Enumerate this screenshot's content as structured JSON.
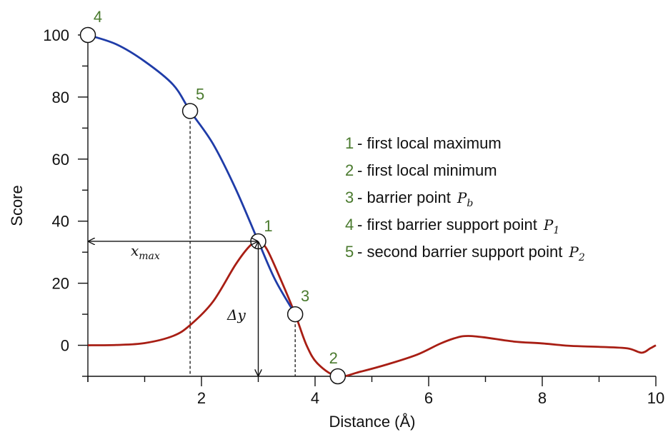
{
  "chart_data": {
    "type": "line",
    "xlabel": "Distance (Å)",
    "ylabel": "Score",
    "xlim": [
      0,
      10
    ],
    "ylim": [
      -10,
      100
    ],
    "x_ticks": [
      2,
      4,
      6,
      8,
      10
    ],
    "y_ticks": [
      0,
      20,
      40,
      60,
      80,
      100
    ],
    "grid": false,
    "colors": {
      "blue": "#1f3ca8",
      "red": "#a81e14",
      "point_label": "#4a7a2e"
    },
    "series": [
      {
        "color": "blue",
        "points": [
          [
            0,
            100
          ],
          [
            0.5,
            97
          ],
          [
            1.0,
            91.5
          ],
          [
            1.5,
            84
          ],
          [
            1.8,
            75.5
          ],
          [
            2.2,
            65
          ],
          [
            2.6,
            50.5
          ],
          [
            3.0,
            33.5
          ],
          [
            3.3,
            21
          ],
          [
            3.65,
            10
          ]
        ]
      },
      {
        "color": "red",
        "points": [
          [
            0,
            0
          ],
          [
            0.5,
            0.1
          ],
          [
            1.0,
            0.7
          ],
          [
            1.5,
            3
          ],
          [
            1.8,
            6.5
          ],
          [
            2.2,
            14
          ],
          [
            2.6,
            26
          ],
          [
            2.85,
            32
          ],
          [
            3.0,
            33.5
          ],
          [
            3.15,
            31
          ],
          [
            3.4,
            21
          ],
          [
            3.65,
            10
          ],
          [
            3.85,
            0
          ],
          [
            4.05,
            -6
          ],
          [
            4.4,
            -10
          ],
          [
            4.8,
            -8.5
          ],
          [
            5.3,
            -6
          ],
          [
            5.8,
            -3
          ],
          [
            6.2,
            0.5
          ],
          [
            6.5,
            2.5
          ],
          [
            6.7,
            3
          ],
          [
            7.0,
            2.5
          ],
          [
            7.5,
            1.2
          ],
          [
            8.0,
            0.6
          ],
          [
            8.5,
            -0.2
          ],
          [
            9.0,
            -0.5
          ],
          [
            9.5,
            -1
          ],
          [
            9.75,
            -2.4
          ],
          [
            9.9,
            -1
          ],
          [
            10.0,
            0
          ]
        ]
      }
    ],
    "marked_points": [
      {
        "label": "4",
        "x": 0.0,
        "y": 100
      },
      {
        "label": "5",
        "x": 1.8,
        "y": 75.5
      },
      {
        "label": "1",
        "x": 3.0,
        "y": 33.5
      },
      {
        "label": "3",
        "x": 3.65,
        "y": 10
      },
      {
        "label": "2",
        "x": 4.4,
        "y": -10
      }
    ],
    "annotations": {
      "x_max": "x_max",
      "delta_y": "Δy"
    },
    "legend": {
      "position": "right",
      "items": [
        {
          "num": "1",
          "text": "- first local maximum",
          "math": ""
        },
        {
          "num": "2",
          "text": "- first local minimum",
          "math": ""
        },
        {
          "num": "3",
          "text": "- barrier point",
          "math": "P_b"
        },
        {
          "num": "4",
          "text": "- first barrier support point",
          "math": "P_1"
        },
        {
          "num": "5",
          "text": "- second barrier support point",
          "math": "P_2"
        }
      ]
    }
  }
}
